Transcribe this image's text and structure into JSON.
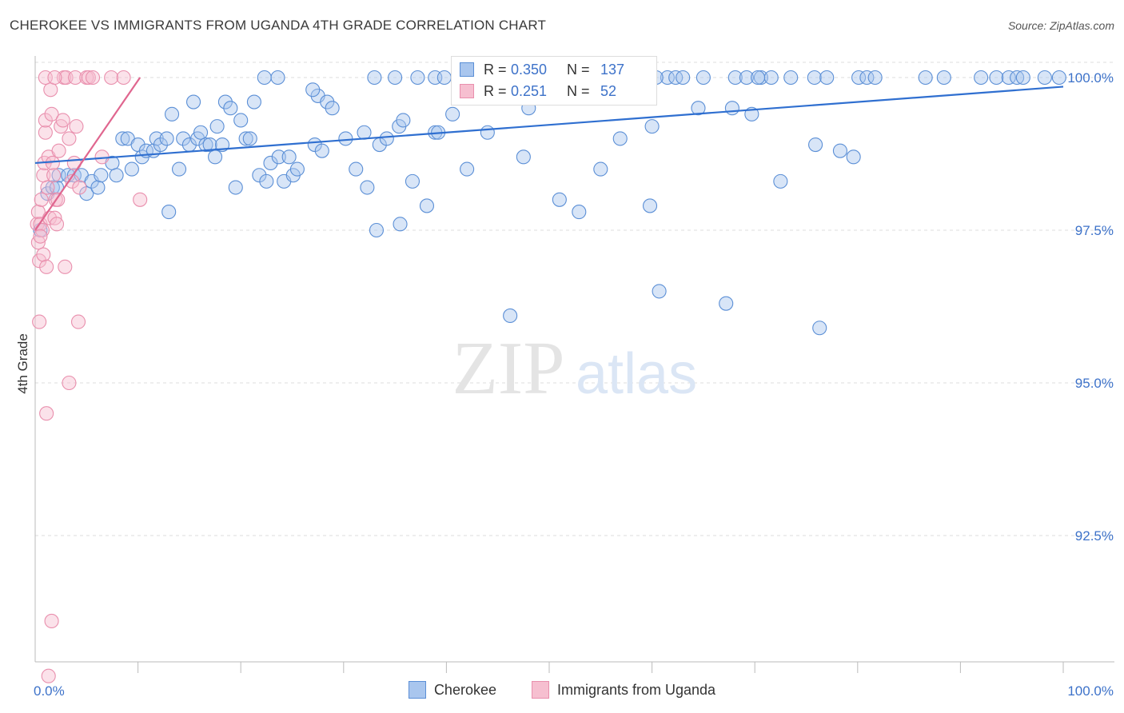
{
  "title": "CHEROKEE VS IMMIGRANTS FROM UGANDA 4TH GRADE CORRELATION CHART",
  "source": "Source: ZipAtlas.com",
  "watermark": {
    "zip": "ZIP",
    "atlas": "atlas"
  },
  "colors": {
    "blue_fill": "#a9c6ee",
    "blue_stroke": "#5b8fd6",
    "blue_line": "#2f6fd0",
    "pink_fill": "#f6bfd0",
    "pink_stroke": "#e98fad",
    "pink_line": "#e0668f",
    "axis_text": "#3d72c9",
    "grid": "#dddddd"
  },
  "legend": {
    "r_label": "R =",
    "n_label": "N =",
    "series": [
      {
        "r": "0.350",
        "n": "137"
      },
      {
        "r": "0.251",
        "n": "52"
      }
    ]
  },
  "bottom_legend": [
    "Cherokee",
    "Immigrants from Uganda"
  ],
  "chart_data": {
    "type": "scatter",
    "title": "CHEROKEE VS IMMIGRANTS FROM UGANDA 4TH GRADE CORRELATION CHART",
    "xlabel": "",
    "ylabel": "4th Grade",
    "xlim": [
      0,
      100
    ],
    "ylim": [
      90.2,
      100.25
    ],
    "x_tick_labels": [
      "0.0%",
      "100.0%"
    ],
    "y_ticks": [
      100.0,
      97.5,
      95.0,
      92.5
    ],
    "y_tick_labels": [
      "100.0%",
      "97.5%",
      "95.0%",
      "92.5%"
    ],
    "series": [
      {
        "name": "Cherokee",
        "r": 0.35,
        "n": 137,
        "trend": {
          "x": [
            0,
            100
          ],
          "y": [
            98.6,
            99.85
          ]
        },
        "points": [
          [
            0.5,
            97.5
          ],
          [
            1.2,
            98.1
          ],
          [
            1.7,
            98.2
          ],
          [
            2.1,
            98.2
          ],
          [
            2.3,
            98.4
          ],
          [
            3.2,
            98.4
          ],
          [
            3.8,
            98.4
          ],
          [
            4.5,
            98.4
          ],
          [
            5.0,
            98.1
          ],
          [
            5.5,
            98.3
          ],
          [
            6.1,
            98.2
          ],
          [
            6.4,
            98.4
          ],
          [
            7.5,
            98.6
          ],
          [
            7.9,
            98.4
          ],
          [
            8.5,
            99.0
          ],
          [
            9.0,
            99.0
          ],
          [
            9.4,
            98.5
          ],
          [
            10.0,
            98.9
          ],
          [
            10.4,
            98.7
          ],
          [
            10.8,
            98.8
          ],
          [
            11.5,
            98.8
          ],
          [
            11.8,
            99.0
          ],
          [
            12.2,
            98.9
          ],
          [
            12.8,
            99.0
          ],
          [
            13.0,
            97.8
          ],
          [
            13.3,
            99.4
          ],
          [
            14.0,
            98.5
          ],
          [
            14.4,
            99.0
          ],
          [
            15.0,
            98.9
          ],
          [
            15.4,
            99.6
          ],
          [
            15.8,
            99.0
          ],
          [
            16.1,
            99.1
          ],
          [
            16.6,
            98.9
          ],
          [
            17.0,
            98.9
          ],
          [
            17.5,
            98.7
          ],
          [
            17.7,
            99.2
          ],
          [
            18.2,
            98.9
          ],
          [
            18.5,
            99.6
          ],
          [
            19.0,
            99.5
          ],
          [
            19.5,
            98.2
          ],
          [
            20.0,
            99.3
          ],
          [
            20.5,
            99.0
          ],
          [
            20.9,
            99.0
          ],
          [
            21.3,
            99.6
          ],
          [
            21.8,
            98.4
          ],
          [
            22.3,
            100.0
          ],
          [
            22.5,
            98.3
          ],
          [
            22.9,
            98.6
          ],
          [
            23.6,
            100.0
          ],
          [
            23.7,
            98.7
          ],
          [
            24.2,
            98.3
          ],
          [
            24.7,
            98.7
          ],
          [
            25.1,
            98.4
          ],
          [
            25.5,
            98.5
          ],
          [
            27.2,
            98.9
          ],
          [
            27.5,
            99.7
          ],
          [
            27.9,
            98.8
          ],
          [
            28.4,
            99.6
          ],
          [
            28.9,
            99.5
          ],
          [
            30.2,
            99.0
          ],
          [
            31.2,
            98.5
          ],
          [
            32.0,
            99.1
          ],
          [
            32.3,
            98.2
          ],
          [
            33.0,
            100.0
          ],
          [
            33.2,
            97.5
          ],
          [
            33.5,
            98.9
          ],
          [
            34.2,
            99.0
          ],
          [
            35.0,
            100.0
          ],
          [
            35.4,
            99.2
          ],
          [
            35.5,
            97.6
          ],
          [
            35.8,
            99.3
          ],
          [
            36.7,
            98.3
          ],
          [
            37.2,
            100.0
          ],
          [
            38.1,
            97.9
          ],
          [
            38.9,
            99.1
          ],
          [
            38.9,
            100.0
          ],
          [
            39.2,
            99.1
          ],
          [
            40.6,
            99.4
          ],
          [
            41.3,
            100.0
          ],
          [
            42.0,
            98.5
          ],
          [
            43.8,
            100.0
          ],
          [
            44.0,
            99.1
          ],
          [
            45.8,
            100.0
          ],
          [
            46.2,
            96.1
          ],
          [
            47.5,
            98.7
          ],
          [
            48.0,
            99.5
          ],
          [
            49.2,
            100.0
          ],
          [
            50.5,
            99.8
          ],
          [
            51.0,
            98.0
          ],
          [
            52.0,
            100.0
          ],
          [
            52.4,
            100.0
          ],
          [
            52.9,
            97.8
          ],
          [
            54.2,
            100.0
          ],
          [
            55.0,
            98.5
          ],
          [
            56.9,
            99.0
          ],
          [
            58.2,
            100.0
          ],
          [
            59.8,
            97.9
          ],
          [
            60.0,
            99.2
          ],
          [
            60.7,
            96.5
          ],
          [
            61.5,
            100.0
          ],
          [
            62.3,
            100.0
          ],
          [
            63.0,
            100.0
          ],
          [
            64.5,
            99.5
          ],
          [
            65.0,
            100.0
          ],
          [
            67.2,
            96.3
          ],
          [
            67.8,
            99.5
          ],
          [
            68.1,
            100.0
          ],
          [
            69.2,
            100.0
          ],
          [
            69.7,
            99.4
          ],
          [
            70.6,
            100.0
          ],
          [
            71.6,
            100.0
          ],
          [
            72.5,
            98.3
          ],
          [
            73.5,
            100.0
          ],
          [
            75.8,
            100.0
          ],
          [
            75.9,
            98.9
          ],
          [
            76.3,
            95.9
          ],
          [
            77.0,
            100.0
          ],
          [
            78.3,
            98.8
          ],
          [
            79.6,
            98.7
          ],
          [
            80.1,
            100.0
          ],
          [
            80.9,
            100.0
          ],
          [
            81.7,
            100.0
          ],
          [
            86.6,
            100.0
          ],
          [
            88.4,
            100.0
          ],
          [
            92.0,
            100.0
          ],
          [
            93.5,
            100.0
          ],
          [
            94.7,
            100.0
          ],
          [
            95.5,
            100.0
          ],
          [
            96.1,
            100.0
          ],
          [
            98.2,
            100.0
          ],
          [
            99.6,
            100.0
          ],
          [
            70.3,
            100.0
          ],
          [
            45.5,
            100.0
          ],
          [
            27.0,
            99.8
          ],
          [
            54.5,
            100.0
          ],
          [
            60.4,
            100.0
          ],
          [
            39.8,
            100.0
          ]
        ]
      },
      {
        "name": "Immigrants from Uganda",
        "r": 0.251,
        "n": 52,
        "trend": {
          "x": [
            0,
            10.2
          ],
          "y": [
            97.5,
            100.0
          ]
        },
        "points": [
          [
            0.2,
            97.6
          ],
          [
            0.3,
            97.3
          ],
          [
            0.3,
            97.8
          ],
          [
            0.4,
            97.0
          ],
          [
            0.5,
            97.6
          ],
          [
            0.6,
            98.0
          ],
          [
            0.7,
            97.5
          ],
          [
            0.8,
            98.4
          ],
          [
            0.8,
            97.1
          ],
          [
            0.9,
            98.6
          ],
          [
            1.0,
            99.1
          ],
          [
            1.0,
            99.3
          ],
          [
            1.1,
            96.9
          ],
          [
            1.2,
            98.2
          ],
          [
            1.3,
            98.7
          ],
          [
            1.4,
            97.7
          ],
          [
            1.5,
            99.8
          ],
          [
            1.6,
            99.4
          ],
          [
            1.7,
            98.6
          ],
          [
            1.8,
            98.4
          ],
          [
            1.9,
            97.7
          ],
          [
            2.0,
            98.0
          ],
          [
            2.1,
            97.6
          ],
          [
            2.2,
            98.0
          ],
          [
            2.3,
            98.8
          ],
          [
            2.5,
            99.2
          ],
          [
            2.7,
            99.3
          ],
          [
            2.8,
            100.0
          ],
          [
            2.9,
            96.9
          ],
          [
            3.0,
            100.0
          ],
          [
            3.3,
            99.0
          ],
          [
            3.6,
            98.3
          ],
          [
            3.8,
            98.6
          ],
          [
            3.9,
            100.0
          ],
          [
            4.0,
            99.2
          ],
          [
            4.2,
            96.0
          ],
          [
            4.3,
            98.2
          ],
          [
            5.0,
            100.0
          ],
          [
            5.2,
            100.0
          ],
          [
            5.6,
            100.0
          ],
          [
            6.5,
            98.7
          ],
          [
            7.4,
            100.0
          ],
          [
            8.6,
            100.0
          ],
          [
            10.2,
            98.0
          ],
          [
            0.4,
            96.0
          ],
          [
            1.1,
            94.5
          ],
          [
            3.3,
            95.0
          ],
          [
            1.6,
            91.1
          ],
          [
            1.3,
            90.2
          ],
          [
            0.5,
            97.4
          ],
          [
            1.0,
            100.0
          ],
          [
            1.9,
            100.0
          ]
        ]
      }
    ]
  }
}
